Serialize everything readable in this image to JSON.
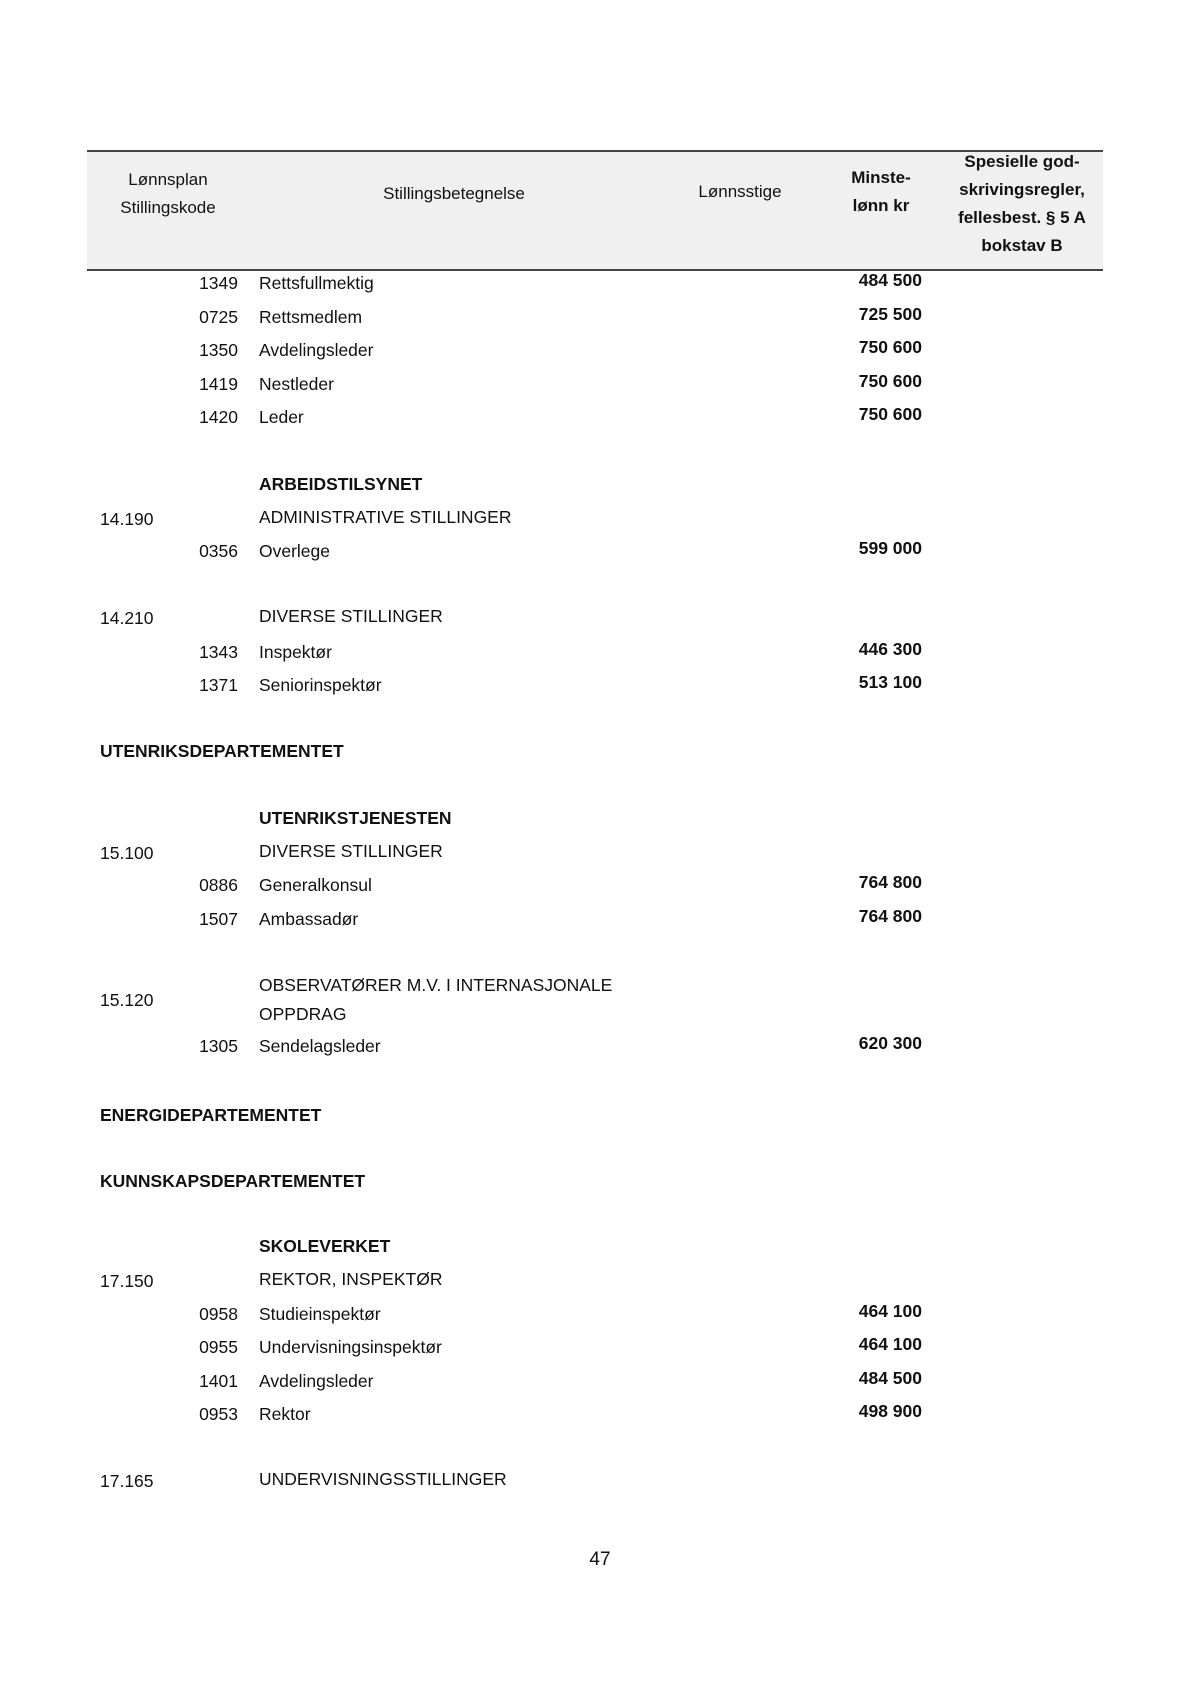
{
  "header": {
    "col1": [
      "Lønnsplan",
      "Stillingskode"
    ],
    "col2": "Stillingsbetegnelse",
    "col3": "Lønnsstige",
    "col4": [
      "Minste-",
      "lønn kr"
    ],
    "col5": [
      "Spesielle god-",
      "skrivingsregler,",
      "fellesbest. § 5 A",
      "bokstav B"
    ]
  },
  "lines": [
    {
      "type": "row",
      "code": "1349",
      "name": "Rettsfullmektig",
      "amount": "484 500"
    },
    {
      "type": "row",
      "code": "0725",
      "name": "Rettsmedlem",
      "amount": "725 500"
    },
    {
      "type": "row",
      "code": "1350",
      "name": "Avdelingsleder",
      "amount": "750 600"
    },
    {
      "type": "row",
      "code": "1419",
      "name": "Nestleder",
      "amount": "750 600"
    },
    {
      "type": "row",
      "code": "1420",
      "name": "Leder",
      "amount": "750 600"
    },
    {
      "type": "section",
      "text": "ARBEIDSTILSYNET"
    },
    {
      "type": "group",
      "plan": "14.190",
      "text": "ADMINISTRATIVE STILLINGER"
    },
    {
      "type": "row",
      "code": "0356",
      "name": "Overlege",
      "amount": "599 000"
    },
    {
      "type": "group",
      "plan": "14.210",
      "text": "DIVERSE STILLINGER"
    },
    {
      "type": "row",
      "code": "1343",
      "name": "Inspektør",
      "amount": "446 300"
    },
    {
      "type": "row",
      "code": "1371",
      "name": "Seniorinspektør",
      "amount": "513 100"
    },
    {
      "type": "dept",
      "text": "UTENRIKSDEPARTEMENTET"
    },
    {
      "type": "section",
      "text": "UTENRIKSTJENESTEN"
    },
    {
      "type": "group",
      "plan": "15.100",
      "text": "DIVERSE STILLINGER"
    },
    {
      "type": "row",
      "code": "0886",
      "name": "Generalkonsul",
      "amount": "764 800"
    },
    {
      "type": "row",
      "code": "1507",
      "name": "Ambassadør",
      "amount": "764 800"
    },
    {
      "type": "group2",
      "plan": "15.120",
      "text": "OBSERVATØRER M.V. I INTERNASJONALE",
      "text2": "OPPDRAG"
    },
    {
      "type": "row",
      "code": "1305",
      "name": "Sendelagsleder",
      "amount": "620 300"
    },
    {
      "type": "dept",
      "text": "ENERGIDEPARTEMENTET"
    },
    {
      "type": "dept",
      "text": "KUNNSKAPSDEPARTEMENTET"
    },
    {
      "type": "section",
      "text": "SKOLEVERKET"
    },
    {
      "type": "group",
      "plan": "17.150",
      "text": "REKTOR, INSPEKTØR"
    },
    {
      "type": "row",
      "code": "0958",
      "name": "Studieinspektør",
      "amount": "464 100"
    },
    {
      "type": "row",
      "code": "0955",
      "name": "Undervisningsinspektør",
      "amount": "464 100"
    },
    {
      "type": "row",
      "code": "1401",
      "name": "Avdelingsleder",
      "amount": "484 500"
    },
    {
      "type": "row",
      "code": "0953",
      "name": "Rektor",
      "amount": "498 900"
    },
    {
      "type": "group",
      "plan": "17.165",
      "text": "UNDERVISNINGSSTILLINGER"
    }
  ],
  "page_number": "47"
}
